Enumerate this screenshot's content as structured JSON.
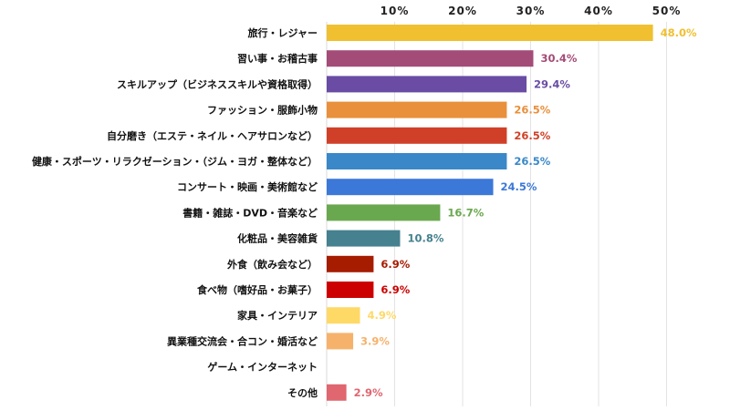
{
  "chart_data": {
    "type": "bar",
    "orientation": "horizontal",
    "title": "",
    "xlabel": "",
    "ylabel": "",
    "xlim": [
      0,
      50
    ],
    "x_ticks": [
      "10%",
      "20%",
      "30%",
      "40%",
      "50%"
    ],
    "x_tick_values": [
      10,
      20,
      30,
      40,
      50
    ],
    "grid": true,
    "axis_position": "top",
    "categories": [
      "旅行・レジャー",
      "習い事・お稽古事",
      "スキルアップ（ビジネススキルや資格取得）",
      "ファッション・服飾小物",
      "自分磨き（エステ・ネイル・ヘアサロンなど）",
      "健康・スポーツ・リラクゼーション・（ジム・ヨガ・整体など）",
      "コンサート・映画・美術館など",
      "書籍・雑誌・DVD・音楽など",
      "化粧品・美容雑貨",
      "外食（飲み会など）",
      "食べ物（嗜好品・お菓子）",
      "家具・インテリア",
      "異業種交流会・合コン・婚活など",
      "ゲーム・インターネット",
      "その他"
    ],
    "values": [
      48.0,
      30.4,
      29.4,
      26.5,
      26.5,
      26.5,
      24.5,
      16.7,
      10.8,
      6.9,
      6.9,
      4.9,
      3.9,
      null,
      2.9
    ],
    "labels": [
      "48.0%",
      "30.4%",
      "29.4%",
      "26.5%",
      "26.5%",
      "26.5%",
      "24.5%",
      "16.7%",
      "10.8%",
      "6.9%",
      "6.9%",
      "4.9%",
      "3.9%",
      "",
      "2.9%"
    ],
    "colors": [
      "#F0C030",
      "#A44C78",
      "#6A4CA4",
      "#E8903C",
      "#D04028",
      "#3A88C8",
      "#3C78D8",
      "#6AA84F",
      "#45818E",
      "#A61C00",
      "#CC0000",
      "#FFD966",
      "#F6B26B",
      "#999999",
      "#E06670"
    ]
  }
}
